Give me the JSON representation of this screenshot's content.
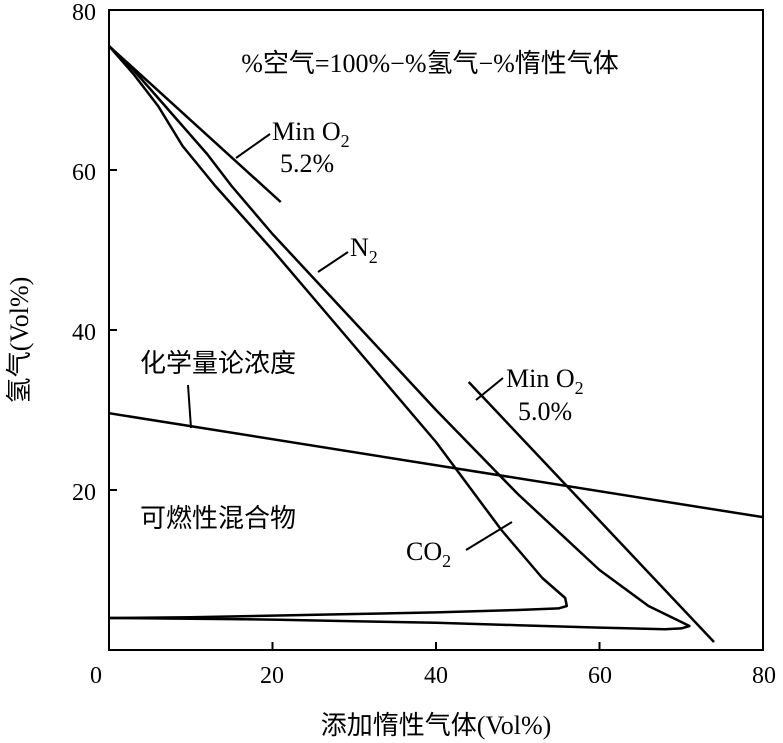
{
  "chart_data": {
    "type": "line",
    "title": "%空气=100%−%氢气−%惰性气体",
    "xlabel": "添加惰性气体(Vol%)",
    "ylabel": "氢气(Vol%)",
    "xlim": [
      0,
      80
    ],
    "ylim": [
      0,
      80
    ],
    "xticks": [
      "0",
      "20",
      "40",
      "60",
      "80"
    ],
    "yticks": [
      "20",
      "40",
      "60",
      "80"
    ],
    "grid": false,
    "series": [
      {
        "name": "N2",
        "label_text": "N",
        "label_sub": "2",
        "points": [
          [
            0,
            75.5
          ],
          [
            3,
            72.5
          ],
          [
            6,
            69
          ],
          [
            9,
            65.5
          ],
          [
            12,
            62
          ],
          [
            15,
            58
          ],
          [
            20,
            52
          ],
          [
            30,
            41
          ],
          [
            40,
            30
          ],
          [
            50,
            19.5
          ],
          [
            60,
            10
          ],
          [
            66,
            5.5
          ],
          [
            70,
            3.5
          ],
          [
            71,
            3
          ],
          [
            70,
            2.7
          ],
          [
            68,
            2.6
          ],
          [
            60,
            2.8
          ],
          [
            50,
            3.1
          ],
          [
            40,
            3.4
          ],
          [
            30,
            3.6
          ],
          [
            20,
            3.8
          ],
          [
            10,
            3.9
          ],
          [
            0,
            4
          ]
        ]
      },
      {
        "name": "CO2",
        "label_text": "CO",
        "label_sub": "2",
        "points": [
          [
            0,
            75.5
          ],
          [
            3,
            72
          ],
          [
            6,
            68
          ],
          [
            9,
            63
          ],
          [
            13,
            58
          ],
          [
            20,
            50
          ],
          [
            30,
            38
          ],
          [
            40,
            26
          ],
          [
            48,
            15
          ],
          [
            53,
            9
          ],
          [
            55.8,
            6.5
          ],
          [
            56,
            5.5
          ],
          [
            55,
            5.2
          ],
          [
            50,
            5
          ],
          [
            40,
            4.7
          ],
          [
            30,
            4.5
          ],
          [
            20,
            4.3
          ],
          [
            10,
            4.1
          ],
          [
            0,
            4
          ]
        ]
      },
      {
        "name": "Min O2 5.2%",
        "label_text": "Min O",
        "label_sub": "2",
        "label_value": "5.2%",
        "points": [
          [
            0,
            75.5
          ],
          [
            21,
            56
          ]
        ]
      },
      {
        "name": "Min O2 5.0%",
        "label_text": "Min O",
        "label_sub": "2",
        "label_value": "5.0%",
        "points": [
          [
            44,
            33.5
          ],
          [
            74,
            1
          ]
        ]
      },
      {
        "name": "化学量论浓度",
        "label_text": "化学量论浓度",
        "points": [
          [
            0,
            29.6
          ],
          [
            80,
            16.6
          ]
        ]
      }
    ],
    "annotations": {
      "flammable_region": "可燃性混合物"
    }
  }
}
